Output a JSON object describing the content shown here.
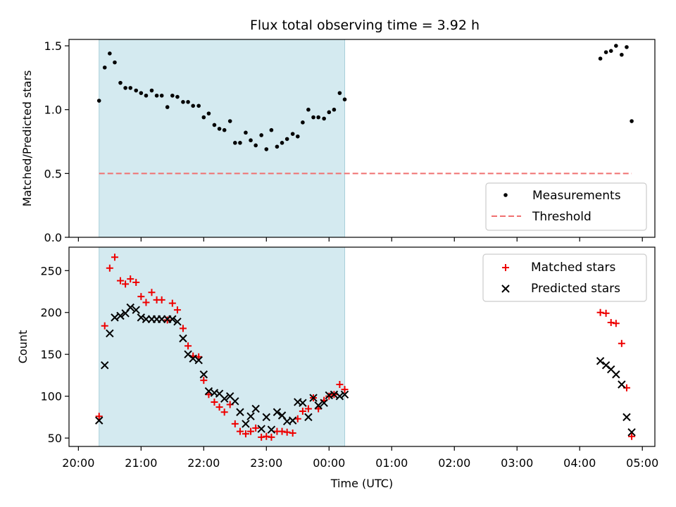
{
  "title": "Flux total observing time = 3.92 h",
  "colors": {
    "observing_span": "#d4eaf0",
    "measurements": "#000000",
    "threshold": "#f07070",
    "matched": "#ee0000",
    "predicted": "#000000"
  },
  "xaxis": {
    "label": "Time (UTC)",
    "unit": "hours since 20:00 UTC",
    "range": [
      -0.15,
      9.2
    ],
    "ticks": [
      {
        "x": 0,
        "label": "20:00"
      },
      {
        "x": 1,
        "label": "21:00"
      },
      {
        "x": 2,
        "label": "22:00"
      },
      {
        "x": 3,
        "label": "23:00"
      },
      {
        "x": 4,
        "label": "00:00"
      },
      {
        "x": 5,
        "label": "01:00"
      },
      {
        "x": 6,
        "label": "02:00"
      },
      {
        "x": 7,
        "label": "03:00"
      },
      {
        "x": 8,
        "label": "04:00"
      },
      {
        "x": 9,
        "label": "05:00"
      }
    ]
  },
  "chart_data": [
    {
      "type": "scatter",
      "title": "Flux total observing time = 3.92 h",
      "ylabel": "Matched/Predicted stars",
      "ylim": [
        0,
        1.55
      ],
      "yticks": [
        {
          "y": 0,
          "label": "0.0"
        },
        {
          "y": 0.5,
          "label": "0.5"
        },
        {
          "y": 1.0,
          "label": "1.0"
        },
        {
          "y": 1.5,
          "label": "1.5"
        }
      ],
      "shaded_span": [
        0.33,
        4.25
      ],
      "legend_position": "lower right",
      "threshold": {
        "name": "Threshold",
        "y": 0.5,
        "x_range": [
          0.33,
          8.83
        ],
        "style": "dashed"
      },
      "series": [
        {
          "name": "Measurements",
          "marker": "dot",
          "x": [
            0.33,
            0.42,
            0.5,
            0.58,
            0.67,
            0.75,
            0.83,
            0.92,
            1.0,
            1.08,
            1.17,
            1.25,
            1.33,
            1.42,
            1.5,
            1.58,
            1.67,
            1.75,
            1.83,
            1.92,
            2.0,
            2.08,
            2.17,
            2.25,
            2.33,
            2.42,
            2.5,
            2.58,
            2.67,
            2.75,
            2.83,
            2.92,
            3.0,
            3.08,
            3.17,
            3.25,
            3.33,
            3.42,
            3.5,
            3.58,
            3.67,
            3.75,
            3.83,
            3.92,
            4.0,
            4.08,
            4.17,
            4.25,
            8.33,
            8.42,
            8.5,
            8.58,
            8.67,
            8.75,
            8.83
          ],
          "y": [
            1.07,
            1.33,
            1.44,
            1.37,
            1.21,
            1.17,
            1.17,
            1.15,
            1.13,
            1.11,
            1.15,
            1.11,
            1.11,
            1.02,
            1.11,
            1.1,
            1.06,
            1.06,
            1.03,
            1.03,
            0.94,
            0.97,
            0.88,
            0.85,
            0.84,
            0.91,
            0.74,
            0.74,
            0.82,
            0.76,
            0.72,
            0.8,
            0.69,
            0.84,
            0.71,
            0.74,
            0.77,
            0.81,
            0.79,
            0.9,
            1.0,
            0.94,
            0.94,
            0.93,
            0.98,
            1.0,
            1.13,
            1.08,
            1.4,
            1.45,
            1.46,
            1.5,
            1.43,
            1.49,
            0.91
          ]
        }
      ]
    },
    {
      "type": "scatter",
      "ylabel": "Count",
      "ylim": [
        40,
        278
      ],
      "yticks": [
        {
          "y": 50,
          "label": "50"
        },
        {
          "y": 100,
          "label": "100"
        },
        {
          "y": 150,
          "label": "150"
        },
        {
          "y": 200,
          "label": "200"
        },
        {
          "y": 250,
          "label": "250"
        }
      ],
      "shaded_span": [
        0.33,
        4.25
      ],
      "legend_position": "upper right",
      "series": [
        {
          "name": "Matched stars",
          "marker": "plus",
          "x": [
            0.33,
            0.42,
            0.5,
            0.58,
            0.67,
            0.75,
            0.83,
            0.92,
            1.0,
            1.08,
            1.17,
            1.25,
            1.33,
            1.42,
            1.5,
            1.58,
            1.67,
            1.75,
            1.83,
            1.92,
            2.0,
            2.08,
            2.17,
            2.25,
            2.33,
            2.42,
            2.5,
            2.58,
            2.67,
            2.75,
            2.83,
            2.92,
            3.0,
            3.08,
            3.17,
            3.25,
            3.33,
            3.42,
            3.5,
            3.58,
            3.67,
            3.75,
            3.83,
            3.92,
            4.0,
            4.08,
            4.17,
            4.25,
            8.33,
            8.42,
            8.5,
            8.58,
            8.67,
            8.75,
            8.83
          ],
          "y": [
            76,
            184,
            253,
            266,
            238,
            234,
            240,
            236,
            219,
            212,
            224,
            215,
            215,
            191,
            211,
            203,
            181,
            160,
            148,
            147,
            119,
            102,
            93,
            87,
            81,
            90,
            67,
            58,
            55,
            58,
            62,
            51,
            52,
            51,
            58,
            58,
            57,
            56,
            73,
            82,
            85,
            98,
            85,
            95,
            100,
            102,
            114,
            108,
            200,
            199,
            188,
            187,
            163,
            110,
            52
          ]
        },
        {
          "name": "Predicted stars",
          "marker": "x",
          "x": [
            0.33,
            0.42,
            0.5,
            0.58,
            0.67,
            0.75,
            0.83,
            0.92,
            1.0,
            1.08,
            1.17,
            1.25,
            1.33,
            1.42,
            1.5,
            1.58,
            1.67,
            1.75,
            1.83,
            1.92,
            2.0,
            2.08,
            2.17,
            2.25,
            2.33,
            2.42,
            2.5,
            2.58,
            2.67,
            2.75,
            2.83,
            2.92,
            3.0,
            3.08,
            3.17,
            3.25,
            3.33,
            3.42,
            3.5,
            3.58,
            3.67,
            3.75,
            3.83,
            3.92,
            4.0,
            4.08,
            4.17,
            4.25,
            8.33,
            8.42,
            8.5,
            8.58,
            8.67,
            8.75,
            8.83
          ],
          "y": [
            71,
            137,
            175,
            194,
            196,
            199,
            206,
            203,
            194,
            192,
            192,
            192,
            192,
            192,
            192,
            189,
            169,
            150,
            145,
            143,
            126,
            106,
            104,
            103,
            97,
            100,
            94,
            81,
            67,
            76,
            85,
            61,
            75,
            60,
            81,
            77,
            70,
            71,
            93,
            92,
            75,
            98,
            89,
            92,
            101,
            102,
            100,
            102,
            142,
            137,
            132,
            126,
            114,
            75,
            57
          ]
        }
      ]
    }
  ]
}
